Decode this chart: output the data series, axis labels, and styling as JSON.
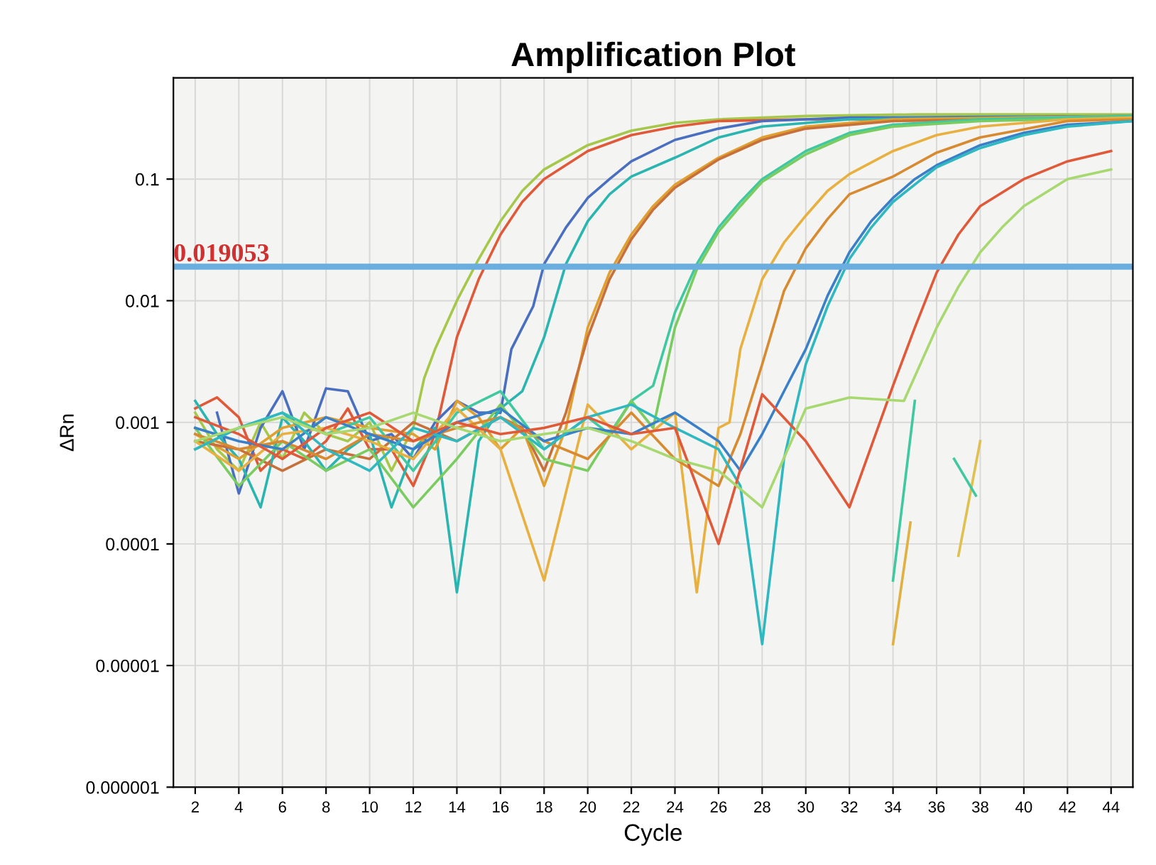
{
  "chart_data": {
    "type": "line",
    "title": "Amplification Plot",
    "xlabel": "Cycle",
    "ylabel": "ΔRn",
    "log": "y",
    "grid": true,
    "marker": "none",
    "line_style": "solid",
    "xlim": [
      1,
      45
    ],
    "xticks": [
      2,
      4,
      6,
      8,
      10,
      12,
      14,
      16,
      18,
      20,
      22,
      24,
      26,
      28,
      30,
      32,
      34,
      36,
      38,
      40,
      42,
      44
    ],
    "ylim": [
      1e-06,
      0.68
    ],
    "yticks": [
      {
        "value": 1e-06,
        "label": "0.000001"
      },
      {
        "value": 1e-05,
        "label": "0.00001"
      },
      {
        "value": 0.0001,
        "label": "0.0001"
      },
      {
        "value": 0.001,
        "label": "0.001"
      },
      {
        "value": 0.01,
        "label": "0.01"
      },
      {
        "value": 0.1,
        "label": "0.1"
      }
    ],
    "ref_lines": [
      {
        "axis": "y",
        "value": 0.019053,
        "label": "0.019053",
        "color": "#6aaee0",
        "line_style": "solid"
      }
    ],
    "series": [
      {
        "color": "#a6c84a",
        "x": [
          2,
          3,
          4,
          5,
          6,
          7,
          8,
          9,
          10,
          11,
          12,
          12.5,
          13,
          14,
          15,
          16,
          17,
          18,
          20,
          22,
          24,
          26,
          30,
          35,
          40,
          45
        ],
        "values": [
          0.0012,
          0.0006,
          0.0004,
          0.001,
          0.0005,
          0.0012,
          0.0008,
          0.0007,
          0.001,
          0.0004,
          0.0009,
          0.0023,
          0.004,
          0.01,
          0.022,
          0.045,
          0.08,
          0.12,
          0.19,
          0.25,
          0.29,
          0.31,
          0.33,
          0.34,
          0.34,
          0.34
        ]
      },
      {
        "color": "#e05a3a",
        "x": [
          2,
          3,
          4,
          5,
          6,
          7,
          8,
          9,
          10,
          11,
          12,
          13,
          13.5,
          14,
          15,
          16,
          17,
          18,
          20,
          22,
          24,
          26,
          30,
          45
        ],
        "values": [
          0.0013,
          0.0016,
          0.0011,
          0.0004,
          0.0006,
          0.0005,
          0.0007,
          0.0013,
          0.0006,
          0.0006,
          0.0003,
          0.0008,
          0.002,
          0.005,
          0.015,
          0.035,
          0.065,
          0.1,
          0.17,
          0.23,
          0.27,
          0.3,
          0.31,
          0.31
        ]
      },
      {
        "color": "#4a6fc0",
        "x": [
          3,
          4,
          5,
          6,
          7,
          8,
          9,
          10,
          11,
          12,
          13,
          14,
          15,
          16,
          16.5,
          17,
          17.5,
          18,
          19,
          20,
          21,
          22,
          24,
          26,
          28,
          32,
          45
        ],
        "values": [
          0.0012,
          0.00026,
          0.0009,
          0.0018,
          0.0006,
          0.0019,
          0.0018,
          0.0007,
          0.0008,
          0.0005,
          0.001,
          0.0015,
          0.0012,
          0.0012,
          0.004,
          0.006,
          0.009,
          0.02,
          0.04,
          0.07,
          0.1,
          0.14,
          0.21,
          0.26,
          0.3,
          0.32,
          0.33
        ]
      },
      {
        "color": "#2bb5b0",
        "x": [
          2,
          3,
          4,
          5,
          6,
          7,
          8,
          9,
          10,
          11,
          12,
          13,
          14,
          15,
          16,
          17,
          18,
          19,
          20,
          21,
          22,
          24,
          26,
          28,
          32,
          45
        ],
        "values": [
          0.0015,
          0.0008,
          0.0005,
          0.0002,
          0.0011,
          0.0007,
          0.0004,
          0.0006,
          0.0008,
          0.0002,
          0.0006,
          0.0009,
          4e-05,
          0.0007,
          0.0013,
          0.0018,
          0.005,
          0.02,
          0.045,
          0.075,
          0.105,
          0.15,
          0.22,
          0.27,
          0.31,
          0.33
        ]
      },
      {
        "color": "#e0a030",
        "x": [
          2,
          4,
          6,
          8,
          10,
          12,
          13,
          14,
          15,
          16,
          17,
          18,
          19,
          20,
          21,
          22,
          23,
          24,
          26,
          28,
          30,
          34,
          45
        ],
        "values": [
          0.0008,
          0.0005,
          0.0009,
          0.0011,
          0.0009,
          0.0008,
          0.0006,
          0.0015,
          0.0011,
          0.0006,
          0.0009,
          0.0003,
          0.0009,
          0.006,
          0.017,
          0.035,
          0.06,
          0.09,
          0.15,
          0.22,
          0.27,
          0.31,
          0.33
        ]
      },
      {
        "color": "#c8703a",
        "x": [
          2,
          4,
          6,
          8,
          10,
          12,
          14,
          16,
          17,
          18,
          19,
          20,
          21,
          22,
          23,
          24,
          26,
          28,
          30,
          34,
          45
        ],
        "values": [
          0.0007,
          0.0006,
          0.0004,
          0.0006,
          0.0005,
          0.001,
          0.0007,
          0.0011,
          0.0009,
          0.0004,
          0.0012,
          0.005,
          0.015,
          0.032,
          0.056,
          0.085,
          0.145,
          0.21,
          0.26,
          0.3,
          0.32
        ]
      },
      {
        "color": "#40c8a0",
        "x": [
          2,
          4,
          6,
          8,
          10,
          12,
          14,
          16,
          18,
          20,
          21,
          22,
          23,
          24,
          25,
          26,
          27,
          28,
          30,
          32,
          34,
          38,
          45
        ],
        "values": [
          0.0006,
          0.0009,
          0.0012,
          0.0008,
          0.0011,
          0.0004,
          0.0012,
          0.0018,
          0.0006,
          0.0011,
          0.0008,
          0.0015,
          0.002,
          0.008,
          0.02,
          0.04,
          0.065,
          0.1,
          0.17,
          0.24,
          0.28,
          0.31,
          0.33
        ]
      },
      {
        "color": "#7acc60",
        "x": [
          2,
          4,
          6,
          8,
          10,
          12,
          14,
          16,
          18,
          20,
          22,
          23,
          24,
          25,
          26,
          27,
          28,
          30,
          32,
          34,
          38,
          45
        ],
        "values": [
          0.0009,
          0.0003,
          0.0007,
          0.0004,
          0.0006,
          0.0002,
          0.0005,
          0.0014,
          0.0005,
          0.0004,
          0.0015,
          0.0009,
          0.006,
          0.018,
          0.037,
          0.06,
          0.095,
          0.16,
          0.23,
          0.27,
          0.3,
          0.32
        ]
      },
      {
        "color": "#e8b040",
        "x": [
          2,
          4,
          6,
          8,
          10,
          12,
          14,
          16,
          18,
          20,
          22,
          24,
          25,
          26,
          26.5,
          27,
          28,
          29,
          30,
          31,
          32,
          34,
          36,
          38,
          42,
          45
        ],
        "values": [
          0.0007,
          0.0004,
          0.0008,
          0.0009,
          0.0007,
          0.0005,
          0.0013,
          0.0006,
          5e-05,
          0.0014,
          0.0006,
          0.0012,
          4e-05,
          0.0009,
          0.001,
          0.004,
          0.015,
          0.03,
          0.05,
          0.08,
          0.11,
          0.17,
          0.23,
          0.27,
          0.31,
          0.32
        ]
      },
      {
        "color": "#d88a30",
        "x": [
          2,
          4,
          6,
          8,
          10,
          12,
          14,
          16,
          18,
          20,
          22,
          24,
          26,
          27,
          28,
          29,
          30,
          31,
          32,
          34,
          36,
          38,
          42,
          45
        ],
        "values": [
          0.0008,
          0.0006,
          0.0007,
          0.0005,
          0.0008,
          0.0007,
          0.0009,
          0.0011,
          0.0007,
          0.0005,
          0.0012,
          0.0005,
          0.0003,
          0.0008,
          0.003,
          0.012,
          0.027,
          0.047,
          0.075,
          0.105,
          0.165,
          0.22,
          0.3,
          0.31
        ]
      },
      {
        "color": "#3a80c8",
        "x": [
          2,
          4,
          6,
          8,
          10,
          12,
          14,
          16,
          18,
          20,
          22,
          24,
          26,
          27,
          28,
          29,
          30,
          31,
          32,
          33,
          34,
          35,
          36,
          38,
          40,
          42,
          45
        ],
        "values": [
          0.0009,
          0.0007,
          0.0006,
          0.0011,
          0.0008,
          0.0006,
          0.001,
          0.0013,
          0.0007,
          0.0009,
          0.0008,
          0.0012,
          0.0007,
          0.0004,
          0.0008,
          0.0018,
          0.004,
          0.011,
          0.025,
          0.045,
          0.07,
          0.1,
          0.13,
          0.19,
          0.24,
          0.28,
          0.3
        ]
      },
      {
        "color": "#30b8c0",
        "x": [
          2,
          4,
          6,
          8,
          10,
          12,
          14,
          16,
          18,
          20,
          22,
          24,
          26,
          27,
          28,
          29,
          30,
          31,
          32,
          33,
          34,
          36,
          38,
          40,
          42,
          45
        ],
        "values": [
          0.0006,
          0.0009,
          0.0012,
          0.0006,
          0.0004,
          0.0009,
          0.0007,
          0.0011,
          0.0006,
          0.0011,
          0.0014,
          0.0009,
          0.0006,
          0.0003,
          1.5e-05,
          0.0005,
          0.003,
          0.009,
          0.022,
          0.04,
          0.065,
          0.125,
          0.18,
          0.23,
          0.27,
          0.3
        ]
      },
      {
        "color": "#e05a3a",
        "x": [
          2,
          4,
          6,
          8,
          10,
          12,
          14,
          16,
          18,
          20,
          22,
          24,
          26,
          28,
          30,
          32,
          34,
          35,
          36,
          37,
          38,
          40,
          42,
          44
        ],
        "values": [
          0.0011,
          0.0008,
          0.0005,
          0.0009,
          0.0012,
          0.0007,
          0.001,
          0.0008,
          0.0009,
          0.0011,
          0.0008,
          0.0009,
          0.0001,
          0.0017,
          0.0007,
          0.0002,
          0.002,
          0.006,
          0.017,
          0.035,
          0.06,
          0.1,
          0.14,
          0.17
        ]
      },
      {
        "color": "#a8d870",
        "x": [
          2,
          4,
          6,
          8,
          10,
          12,
          14,
          16,
          18,
          20,
          22,
          24,
          26,
          28,
          30,
          32,
          34.5,
          36,
          37,
          38,
          39,
          40,
          42,
          44
        ],
        "values": [
          0.0007,
          0.0009,
          0.0011,
          0.0008,
          0.0009,
          0.0012,
          0.0009,
          0.0007,
          0.0008,
          0.0009,
          0.0007,
          0.0005,
          0.0004,
          0.0002,
          0.0013,
          0.0016,
          0.0015,
          0.006,
          0.013,
          0.025,
          0.04,
          0.06,
          0.1,
          0.12
        ]
      },
      {
        "color": "#40c8a0",
        "x": [
          34,
          35
        ],
        "values": [
          5e-05,
          0.0015
        ]
      },
      {
        "color": "#e0b040",
        "x": [
          34,
          34.8
        ],
        "values": [
          1.5e-05,
          0.00015
        ]
      },
      {
        "color": "#e0c050",
        "x": [
          37,
          38
        ],
        "values": [
          8e-05,
          0.0007
        ]
      },
      {
        "color": "#40c8a0",
        "x": [
          36.8,
          37.8
        ],
        "values": [
          0.0005,
          0.00025
        ]
      }
    ]
  }
}
